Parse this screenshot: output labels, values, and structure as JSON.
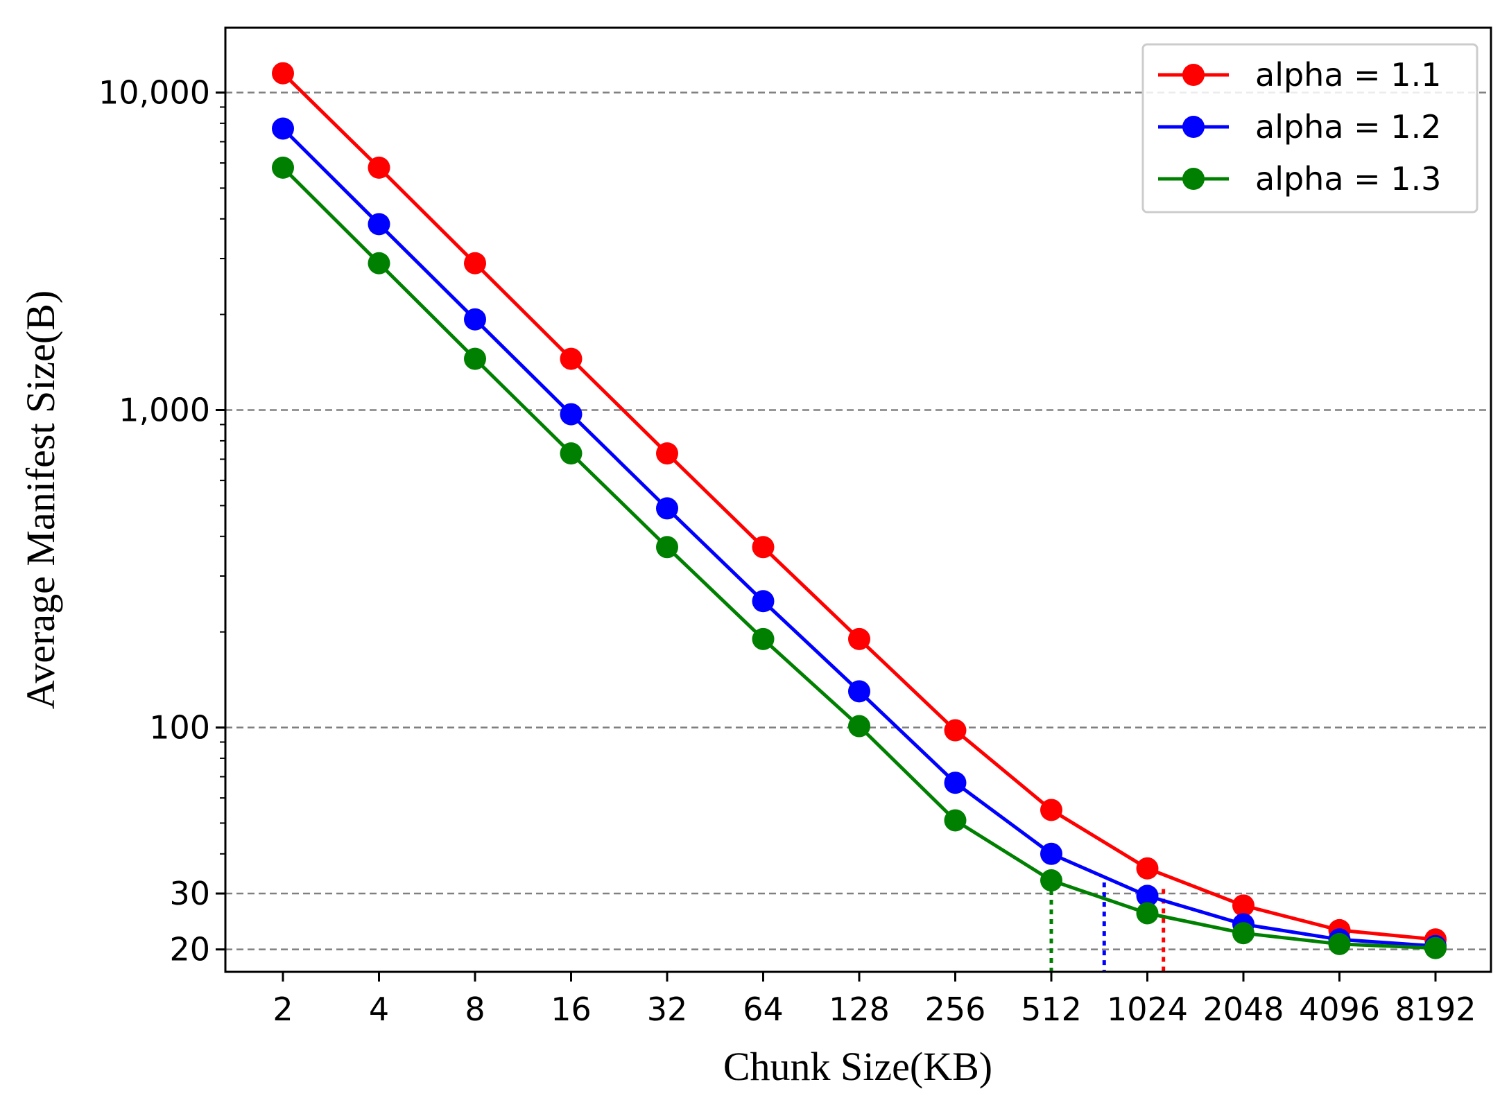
{
  "chart_data": {
    "type": "line",
    "title": "",
    "xlabel": "Chunk Size(KB)",
    "ylabel": "Average Manifest Size(B)",
    "yscale": "log",
    "ylim": [
      17,
      16000
    ],
    "x_scale": "log2",
    "categories": [
      "2",
      "4",
      "8",
      "16",
      "32",
      "64",
      "128",
      "256",
      "512",
      "1024",
      "2048",
      "4096",
      "8192"
    ],
    "x": [
      2,
      4,
      8,
      16,
      32,
      64,
      128,
      256,
      512,
      1024,
      2048,
      4096,
      8192
    ],
    "y_ticks": [
      {
        "value": 20,
        "label": "20"
      },
      {
        "value": 30,
        "label": "30"
      },
      {
        "value": 100,
        "label": "100"
      },
      {
        "value": 1000,
        "label": "1,000"
      },
      {
        "value": 10000,
        "label": "10,000"
      }
    ],
    "grid": "horizontal dashed at labeled y ticks",
    "legend_position": "top-right",
    "series": [
      {
        "name": "alpha = 1.1",
        "color": "#ff0000",
        "values": [
          11500,
          5800,
          2900,
          1450,
          730,
          370,
          190,
          98,
          55,
          36,
          27.5,
          23,
          21.5
        ]
      },
      {
        "name": "alpha = 1.2",
        "color": "#0000ff",
        "values": [
          7700,
          3850,
          1930,
          970,
          490,
          250,
          130,
          67,
          40,
          29.5,
          24,
          21.5,
          20.5
        ]
      },
      {
        "name": "alpha = 1.3",
        "color": "#008000",
        "values": [
          5800,
          2900,
          1450,
          730,
          370,
          190,
          101,
          51,
          33,
          26,
          22.5,
          20.8,
          20.2
        ]
      }
    ],
    "annotations": [
      {
        "type": "vertical-dotted-line",
        "color": "#008000",
        "x": 512,
        "y_top": 33
      },
      {
        "type": "vertical-dotted-line",
        "color": "#0000ff",
        "x": 750,
        "y_top": 32.5
      },
      {
        "type": "vertical-dotted-line",
        "color": "#ff0000",
        "x": 1150,
        "y_top": 31
      }
    ]
  }
}
